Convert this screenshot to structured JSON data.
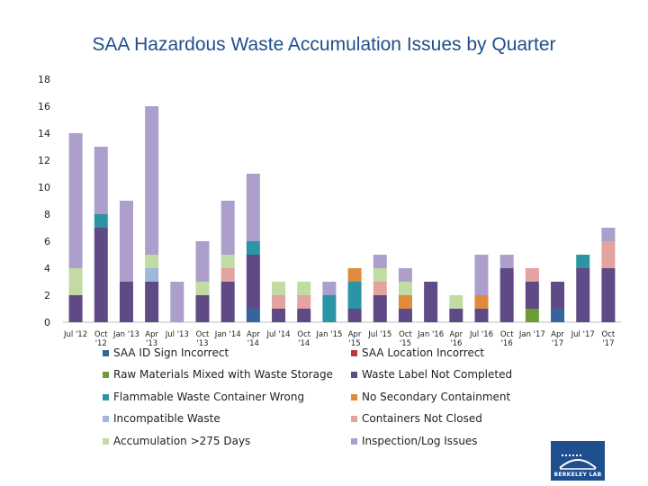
{
  "chart_data": {
    "type": "bar",
    "stacked": true,
    "title": "SAA Hazardous Waste Accumulation Issues by Quarter",
    "ylim": [
      0,
      18
    ],
    "yticks": [
      0,
      2,
      4,
      6,
      8,
      10,
      12,
      14,
      16,
      18
    ],
    "categories": [
      [
        "Jul '12"
      ],
      [
        "Oct",
        "'12"
      ],
      [
        "Jan '13"
      ],
      [
        "Apr",
        "'13"
      ],
      [
        "Jul '13"
      ],
      [
        "Oct",
        "'13"
      ],
      [
        "Jan '14"
      ],
      [
        "Apr",
        "'14"
      ],
      [
        "Jul '14"
      ],
      [
        "Oct",
        "'14"
      ],
      [
        "Jan '15"
      ],
      [
        "Apr",
        "'15"
      ],
      [
        "Jul '15"
      ],
      [
        "Oct",
        "'15"
      ],
      [
        "Jan '16"
      ],
      [
        "Apr",
        "'16"
      ],
      [
        "Jul '16"
      ],
      [
        "Oct",
        "'16"
      ],
      [
        "Jan '17"
      ],
      [
        "Apr",
        "'17"
      ],
      [
        "Jul '17"
      ],
      [
        "Oct",
        "'17"
      ]
    ],
    "series": [
      {
        "name": "SAA ID Sign Incorrect",
        "color": "#34659d",
        "values": [
          0,
          0,
          0,
          0,
          0,
          0,
          0,
          1,
          0,
          0,
          0,
          0,
          0,
          0,
          0,
          0,
          0,
          0,
          0,
          1,
          0,
          0
        ]
      },
      {
        "name": "SAA Location Incorrect",
        "color": "#b73a3a",
        "values": [
          0,
          0,
          0,
          0,
          0,
          0,
          0,
          0,
          0,
          0,
          0,
          0,
          0,
          0,
          0,
          0,
          0,
          0,
          0,
          0,
          0,
          0
        ]
      },
      {
        "name": "Raw Materials Mixed with Waste Storage",
        "color": "#6e9a38",
        "values": [
          0,
          0,
          0,
          0,
          0,
          0,
          0,
          0,
          0,
          0,
          0,
          0,
          0,
          0,
          0,
          0,
          0,
          0,
          1,
          0,
          0,
          0
        ]
      },
      {
        "name": "Waste Label Not Completed",
        "color": "#5f4a86",
        "values": [
          2,
          7,
          3,
          3,
          0,
          2,
          3,
          4,
          1,
          1,
          0,
          1,
          2,
          1,
          3,
          1,
          1,
          4,
          2,
          2,
          4,
          4
        ]
      },
      {
        "name": "Flammable Waste Container Wrong",
        "color": "#2b95a5",
        "values": [
          0,
          1,
          0,
          0,
          0,
          0,
          0,
          1,
          0,
          0,
          2,
          2,
          0,
          0,
          0,
          0,
          0,
          0,
          0,
          0,
          1,
          0
        ]
      },
      {
        "name": "No Secondary Containment",
        "color": "#e08a3c",
        "values": [
          0,
          0,
          0,
          0,
          0,
          0,
          0,
          0,
          0,
          0,
          0,
          1,
          0,
          1,
          0,
          0,
          1,
          0,
          0,
          0,
          0,
          0
        ]
      },
      {
        "name": "Incompatible Waste",
        "color": "#9fb8dc",
        "values": [
          0,
          0,
          0,
          1,
          0,
          0,
          0,
          0,
          0,
          0,
          0,
          0,
          0,
          0,
          0,
          0,
          0,
          0,
          0,
          0,
          0,
          0
        ]
      },
      {
        "name": "Containers Not Closed",
        "color": "#e3a3a1",
        "values": [
          0,
          0,
          0,
          0,
          0,
          0,
          1,
          0,
          1,
          1,
          0,
          0,
          1,
          0,
          0,
          0,
          0,
          0,
          1,
          0,
          0,
          2
        ]
      },
      {
        "name": "Accumulation >275 Days",
        "color": "#c1dba2",
        "values": [
          2,
          0,
          0,
          1,
          0,
          1,
          1,
          0,
          1,
          1,
          0,
          0,
          1,
          1,
          0,
          1,
          0,
          0,
          0,
          0,
          0,
          0
        ]
      },
      {
        "name": "Inspection/Log Issues",
        "color": "#ac9fcb",
        "values": [
          10,
          5,
          6,
          11,
          3,
          3,
          4,
          5,
          0,
          0,
          1,
          0,
          1,
          1,
          0,
          0,
          3,
          1,
          0,
          0,
          0,
          1
        ]
      }
    ],
    "legend_position": "bottom"
  },
  "logo": {
    "text": "BERKELEY LAB"
  }
}
